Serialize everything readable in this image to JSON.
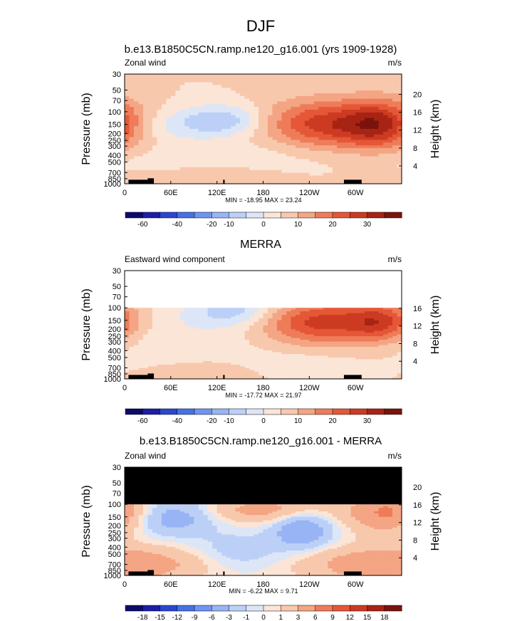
{
  "page_title": "DJF",
  "chart_data": [
    {
      "type": "heatmap",
      "id": "model",
      "title": "b.e13.B1850C5CN.ramp.ne120_g16.001 (yrs 1909-1928)",
      "left_label": "Zonal wind",
      "units": "m/s",
      "ylabel": "Pressure (mb)",
      "right_label": "Height (km)",
      "x_ticks": [
        "0",
        "60E",
        "120E",
        "180",
        "120W",
        "60W"
      ],
      "x_tick_lon": [
        0,
        60,
        120,
        180,
        240,
        300
      ],
      "xlim_lon": [
        0,
        360
      ],
      "y_ticks": [
        "30",
        "50",
        "70",
        "100",
        "150",
        "200",
        "250",
        "300",
        "400",
        "500",
        "700",
        "850",
        "1000"
      ],
      "y_tick_p": [
        30,
        50,
        70,
        100,
        150,
        200,
        250,
        300,
        400,
        500,
        700,
        850,
        1000
      ],
      "ylim_p": [
        30,
        1000
      ],
      "height_ticks": [
        "20",
        "16",
        "12",
        "8",
        "4"
      ],
      "height_km": [
        20,
        16,
        12,
        8,
        4
      ],
      "data_top_p": 30,
      "stats": "MIN = -18.95  MAX = 23.24",
      "min": -18.95,
      "max": 23.24,
      "blobs": [
        {
          "lon": 130,
          "p": 130,
          "rl": 38,
          "rp": 0.35,
          "v": -14
        },
        {
          "lon": 60,
          "p": 160,
          "rl": 45,
          "rp": 0.35,
          "v": -6
        },
        {
          "lon": 260,
          "p": 150,
          "rl": 58,
          "rp": 0.55,
          "v": 22
        },
        {
          "lon": 335,
          "p": 150,
          "rl": 35,
          "rp": 0.55,
          "v": 21
        },
        {
          "lon": 110,
          "p": 780,
          "rl": 70,
          "rp": 0.25,
          "v": 5
        },
        {
          "lon": 315,
          "p": 900,
          "rl": 25,
          "rp": 0.2,
          "v": 3
        },
        {
          "lon": 200,
          "p": 400,
          "rl": 60,
          "rp": 0.5,
          "v": -3
        },
        {
          "lon": 60,
          "p": 500,
          "rl": 70,
          "rp": 0.4,
          "v": -3
        }
      ]
    },
    {
      "type": "heatmap",
      "id": "merra",
      "title": "MERRA",
      "left_label": "Eastward wind component",
      "units": "m/s",
      "ylabel": "Pressure (mb)",
      "right_label": "Height (km)",
      "x_ticks": [
        "0",
        "60E",
        "120E",
        "180",
        "120W",
        "60W"
      ],
      "x_tick_lon": [
        0,
        60,
        120,
        180,
        240,
        300
      ],
      "xlim_lon": [
        0,
        360
      ],
      "y_ticks": [
        "30",
        "50",
        "70",
        "100",
        "150",
        "200",
        "250",
        "300",
        "400",
        "500",
        "700",
        "850",
        "1000"
      ],
      "y_tick_p": [
        30,
        50,
        70,
        100,
        150,
        200,
        250,
        300,
        400,
        500,
        700,
        850,
        1000
      ],
      "ylim_p": [
        30,
        1000
      ],
      "height_ticks": [
        "16",
        "12",
        "8",
        "4"
      ],
      "height_km": [
        16,
        12,
        8,
        4
      ],
      "data_top_p": 100,
      "stats": "MIN = -17.72  MAX = 21.97",
      "min": -17.72,
      "max": 21.97,
      "blobs": [
        {
          "lon": 140,
          "p": 110,
          "rl": 40,
          "rp": 0.35,
          "v": -13
        },
        {
          "lon": 70,
          "p": 250,
          "rl": 80,
          "rp": 0.6,
          "v": -4
        },
        {
          "lon": 255,
          "p": 160,
          "rl": 55,
          "rp": 0.5,
          "v": 22
        },
        {
          "lon": 335,
          "p": 160,
          "rl": 30,
          "rp": 0.45,
          "v": 18
        },
        {
          "lon": 220,
          "p": 650,
          "rl": 50,
          "rp": 0.3,
          "v": -4
        },
        {
          "lon": 120,
          "p": 800,
          "rl": 60,
          "rp": 0.3,
          "v": 3
        }
      ]
    },
    {
      "type": "heatmap",
      "id": "diff",
      "title": "b.e13.B1850C5CN.ramp.ne120_g16.001 - MERRA",
      "left_label": "Zonal wind",
      "units": "m/s",
      "ylabel": "Pressure (mb)",
      "right_label": "Height (km)",
      "x_ticks": [
        "0",
        "60E",
        "120E",
        "180",
        "120W",
        "60W"
      ],
      "x_tick_lon": [
        0,
        60,
        120,
        180,
        240,
        300
      ],
      "xlim_lon": [
        0,
        360
      ],
      "y_ticks": [
        "30",
        "50",
        "70",
        "100",
        "150",
        "200",
        "250",
        "300",
        "400",
        "500",
        "700",
        "850",
        "1000"
      ],
      "y_tick_p": [
        30,
        50,
        70,
        100,
        150,
        200,
        250,
        300,
        400,
        500,
        700,
        850,
        1000
      ],
      "ylim_p": [
        30,
        1000
      ],
      "height_ticks": [
        "20",
        "16",
        "12",
        "8",
        "4"
      ],
      "height_km": [
        20,
        16,
        12,
        8,
        4
      ],
      "data_top_p": 100,
      "masked_above_p": 100,
      "stats": "MIN = -6.22  MAX = 9.71",
      "min": -6.22,
      "max": 9.71,
      "blobs": [
        {
          "lon": 60,
          "p": 150,
          "rl": 40,
          "rp": 0.4,
          "v": -5
        },
        {
          "lon": 230,
          "p": 230,
          "rl": 25,
          "rp": 0.4,
          "v": -6
        },
        {
          "lon": 180,
          "p": 120,
          "rl": 60,
          "rp": 0.3,
          "v": 4
        },
        {
          "lon": 345,
          "p": 130,
          "rl": 35,
          "rp": 0.45,
          "v": 7
        },
        {
          "lon": 20,
          "p": 700,
          "rl": 60,
          "rp": 0.4,
          "v": 4
        },
        {
          "lon": 300,
          "p": 700,
          "rl": 60,
          "rp": 0.4,
          "v": 3
        },
        {
          "lon": 150,
          "p": 450,
          "rl": 40,
          "rp": 0.4,
          "v": -2
        }
      ]
    }
  ],
  "colorbars": [
    {
      "id": "cb-model",
      "labels": [
        "-60",
        "-40",
        "-20",
        "-10",
        "0",
        "10",
        "20",
        "30"
      ],
      "colors": [
        "#0b0b6e",
        "#1d1da8",
        "#2b46cf",
        "#4471e6",
        "#6f95f0",
        "#98b4f5",
        "#bcd0f7",
        "#dce6f7",
        "#fbe5d6",
        "#f8c8ad",
        "#f4a584",
        "#ee7c59",
        "#e55737",
        "#cd3a22",
        "#a72414",
        "#7a130d"
      ]
    },
    {
      "id": "cb-merra",
      "labels": [
        "-60",
        "-40",
        "-20",
        "-10",
        "0",
        "10",
        "20",
        "30"
      ],
      "colors": [
        "#0b0b6e",
        "#1d1da8",
        "#2b46cf",
        "#4471e6",
        "#6f95f0",
        "#98b4f5",
        "#bcd0f7",
        "#dce6f7",
        "#fbe5d6",
        "#f8c8ad",
        "#f4a584",
        "#ee7c59",
        "#e55737",
        "#cd3a22",
        "#a72414",
        "#7a130d"
      ]
    },
    {
      "id": "cb-diff",
      "labels": [
        "-18",
        "-15",
        "-12",
        "-9",
        "-6",
        "-3",
        "-1",
        "0",
        "1",
        "3",
        "6",
        "9",
        "12",
        "15",
        "18"
      ],
      "colors": [
        "#0b0b6e",
        "#1d1da8",
        "#2b46cf",
        "#4471e6",
        "#6f95f0",
        "#98b4f5",
        "#bcd0f7",
        "#dce6f7",
        "#fbe5d6",
        "#f8c8ad",
        "#f4a584",
        "#ee7c59",
        "#e55737",
        "#cd3a22",
        "#a72414",
        "#7a130d"
      ]
    }
  ]
}
